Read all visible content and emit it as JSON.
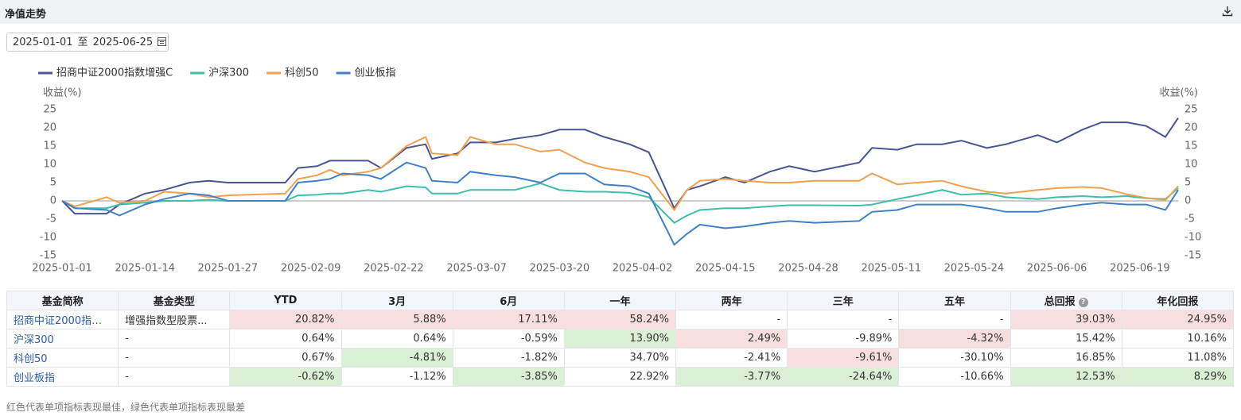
{
  "header": {
    "title": "净值走势"
  },
  "date_range": {
    "start": "2025-01-01",
    "separator": "至",
    "end": "2025-06-25"
  },
  "chart_data": {
    "type": "line",
    "y_label": "收益(%)",
    "x": [
      "2025-01-01",
      "2025-01-03",
      "2025-01-08",
      "2025-01-10",
      "2025-01-14",
      "2025-01-17",
      "2025-01-21",
      "2025-01-24",
      "2025-01-27",
      "2025-02-05",
      "2025-02-07",
      "2025-02-10",
      "2025-02-12",
      "2025-02-14",
      "2025-02-18",
      "2025-02-20",
      "2025-02-24",
      "2025-02-27",
      "2025-02-28",
      "2025-03-04",
      "2025-03-06",
      "2025-03-10",
      "2025-03-13",
      "2025-03-17",
      "2025-03-20",
      "2025-03-24",
      "2025-03-27",
      "2025-03-31",
      "2025-04-03",
      "2025-04-07",
      "2025-04-09",
      "2025-04-11",
      "2025-04-15",
      "2025-04-18",
      "2025-04-22",
      "2025-04-25",
      "2025-04-29",
      "2025-05-06",
      "2025-05-08",
      "2025-05-12",
      "2025-05-15",
      "2025-05-19",
      "2025-05-22",
      "2025-05-26",
      "2025-05-29",
      "2025-06-03",
      "2025-06-06",
      "2025-06-10",
      "2025-06-13",
      "2025-06-17",
      "2025-06-20",
      "2025-06-23",
      "2025-06-25"
    ],
    "series": [
      {
        "name": "招商中证2000指数增强C",
        "color": "#4a5494",
        "values": [
          0,
          -3.5,
          -3.5,
          -1,
          2,
          3,
          5,
          5.5,
          5,
          5,
          9,
          9.5,
          11,
          11,
          11,
          9,
          14.5,
          15.5,
          11.5,
          13,
          16,
          16,
          17,
          18,
          19.5,
          19.5,
          17.5,
          15.5,
          13.3,
          -2,
          3,
          4,
          6.5,
          5,
          8,
          9.5,
          8,
          10.5,
          14.5,
          14,
          15.5,
          15.5,
          16.5,
          14.5,
          15.5,
          18,
          16,
          19.5,
          21.5,
          21.5,
          20.5,
          17.5,
          22.7
        ]
      },
      {
        "name": "沪深300",
        "color": "#3ebfa8",
        "values": [
          0,
          -2,
          -2,
          -1,
          -0.5,
          0,
          0,
          0.3,
          0,
          0,
          1.5,
          1.7,
          2,
          2,
          3,
          2.5,
          4,
          3.7,
          2,
          2,
          3,
          3,
          3,
          4.8,
          3,
          2.5,
          2.5,
          2.2,
          1,
          -6,
          -4,
          -2.5,
          -2,
          -2,
          -1.5,
          -1.2,
          -1.2,
          -1.3,
          -1,
          0.5,
          1.5,
          3,
          1.7,
          2,
          1,
          0.5,
          1,
          1.3,
          1,
          1.3,
          0.7,
          0.5,
          3.5
        ]
      },
      {
        "name": "科创50",
        "color": "#f0a04e",
        "values": [
          0,
          -1.5,
          1,
          -0.5,
          0,
          2.5,
          2,
          1,
          1.5,
          2,
          6,
          7,
          8.5,
          7,
          8,
          9,
          15,
          17.5,
          13,
          12.5,
          17.5,
          15.5,
          15.5,
          13.5,
          14,
          10.5,
          9,
          8,
          6.5,
          -2.5,
          3,
          5.5,
          6,
          5.5,
          5,
          5,
          5.5,
          5.5,
          7.5,
          4.5,
          5,
          5.5,
          4,
          2.5,
          2,
          3,
          3.5,
          3.8,
          3.5,
          1.8,
          0.8,
          0.2,
          4
        ]
      },
      {
        "name": "创业板指",
        "color": "#3f80c6",
        "values": [
          0,
          -2,
          -2.5,
          -4,
          -1,
          0.5,
          2,
          1.5,
          0,
          0,
          5,
          5.5,
          6,
          7.5,
          7,
          6,
          10.5,
          9,
          5.5,
          5,
          8,
          7,
          6.5,
          5,
          7.5,
          7.5,
          4.5,
          4,
          2,
          -12,
          -9,
          -6.5,
          -7.5,
          -7,
          -6,
          -5.5,
          -6,
          -5.5,
          -3,
          -2.5,
          -1,
          -1,
          -1,
          -2,
          -3,
          -3,
          -2,
          -1,
          -0.5,
          -1,
          -1,
          -2.5,
          3
        ]
      }
    ],
    "xlim": [
      "2025-01-01",
      "2025-06-25"
    ],
    "xticks": [
      "2025-01-01",
      "2025-01-14",
      "2025-01-27",
      "2025-02-09",
      "2025-02-22",
      "2025-03-07",
      "2025-03-20",
      "2025-04-02",
      "2025-04-15",
      "2025-04-28",
      "2025-05-11",
      "2025-05-24",
      "2025-06-06",
      "2025-06-19"
    ],
    "ylim": [
      -15,
      25
    ],
    "yticks": [
      -15,
      -10,
      -5,
      0,
      5,
      10,
      15,
      20,
      25
    ]
  },
  "table": {
    "columns": [
      "基金简称",
      "基金类型",
      "YTD",
      "3月",
      "6月",
      "一年",
      "两年",
      "三年",
      "五年",
      "总回报",
      "年化回报"
    ],
    "rows": [
      [
        "招商中证2000指数增强C",
        "增强指数型股票...",
        "20.82%",
        "5.88%",
        "17.11%",
        "58.24%",
        "-",
        "-",
        "-",
        "39.03%",
        "24.95%"
      ],
      [
        "沪深300",
        "-",
        "0.64%",
        "0.64%",
        "-0.59%",
        "13.90%",
        "2.49%",
        "-9.89%",
        "-4.32%",
        "15.42%",
        "10.16%"
      ],
      [
        "科创50",
        "-",
        "0.67%",
        "-4.81%",
        "-1.82%",
        "34.70%",
        "-2.41%",
        "-9.61%",
        "-30.10%",
        "16.85%",
        "11.08%"
      ],
      [
        "创业板指",
        "-",
        "-0.62%",
        "-1.12%",
        "-3.85%",
        "22.92%",
        "-3.77%",
        "-24.64%",
        "-10.66%",
        "12.53%",
        "8.29%"
      ]
    ],
    "cell_colors": [
      [
        null,
        null,
        "#f8dede",
        "#f8dede",
        "#f8dede",
        "#f8dede",
        null,
        null,
        null,
        "#f8dede",
        "#f8dede"
      ],
      [
        null,
        null,
        null,
        null,
        null,
        "#d9f0d4",
        "#f8dede",
        null,
        "#f8dede",
        null,
        null
      ],
      [
        null,
        null,
        null,
        "#d9f0d4",
        null,
        null,
        null,
        "#f8dede",
        null,
        null,
        null
      ],
      [
        null,
        null,
        "#d9f0d4",
        null,
        "#d9f0d4",
        null,
        "#d9f0d4",
        "#d9f0d4",
        null,
        "#d9f0d4",
        "#d9f0d4"
      ]
    ]
  },
  "footnote": "红色代表单项指标表现最佳，绿色代表单项指标表现最差"
}
